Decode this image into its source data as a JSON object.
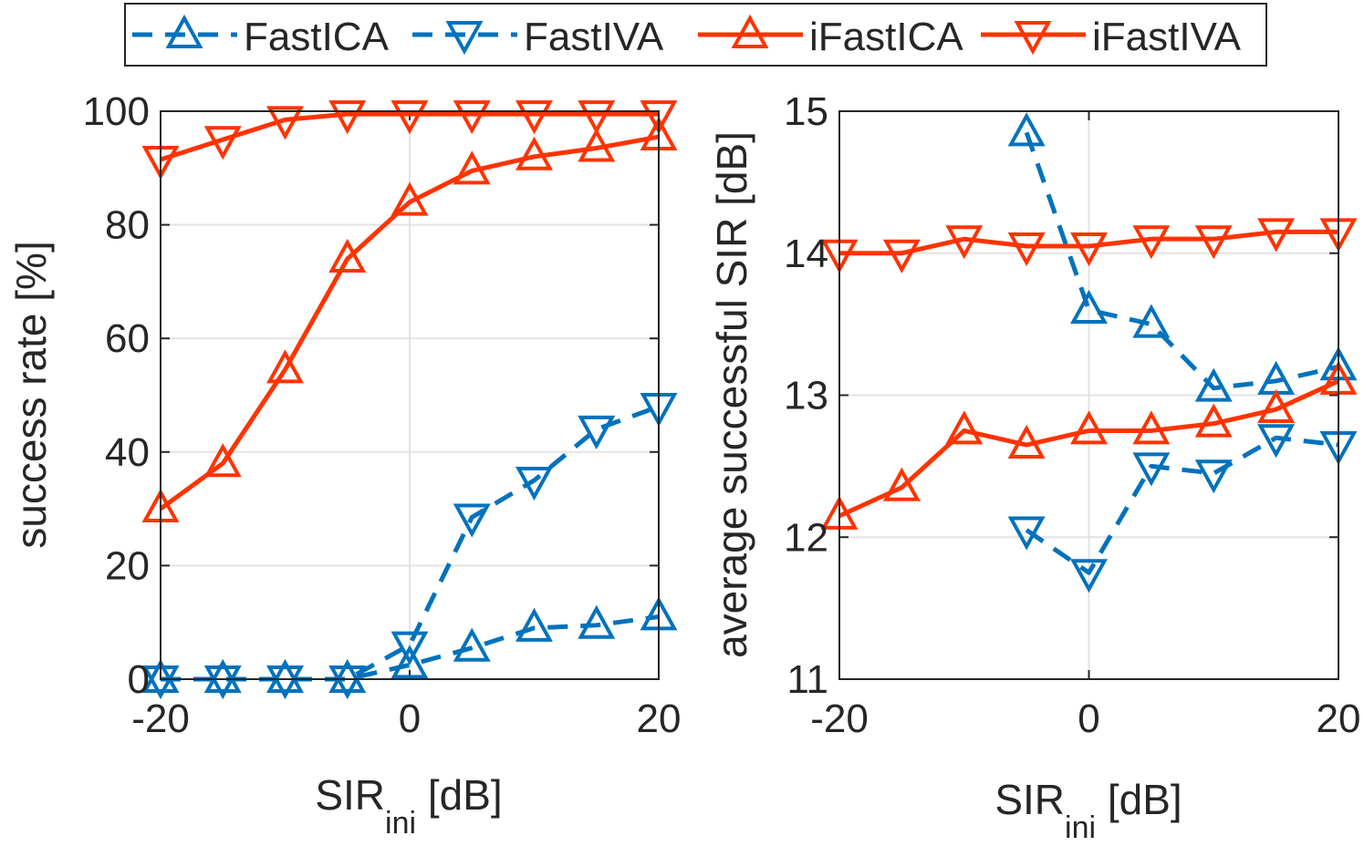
{
  "colors": {
    "fastica": "#0072BD",
    "fastiva": "#0072BD",
    "ifastica": "#FF3300",
    "ifastiva": "#FF3300",
    "grid": "#e3e3e3",
    "axis": "#262626"
  },
  "legend": {
    "items": [
      {
        "label": "FastICA",
        "series": "FastICA"
      },
      {
        "label": "FastIVA",
        "series": "FastIVA"
      },
      {
        "label": "iFastICA",
        "series": "iFastICA"
      },
      {
        "label": "iFastIVA",
        "series": "iFastIVA"
      }
    ]
  },
  "chart_data": [
    {
      "type": "line",
      "title": "",
      "xlabel": "SIR",
      "xlabel_sub": "ini",
      "xlabel_unit": " [dB]",
      "ylabel": "success rate [%]",
      "xlim": [
        -20,
        20
      ],
      "ylim": [
        0,
        100
      ],
      "xticks": [
        -20,
        0,
        20
      ],
      "yticks": [
        0,
        20,
        40,
        60,
        80,
        100
      ],
      "grid": true,
      "x": [
        -20,
        -15,
        -10,
        -5,
        0,
        5,
        10,
        15,
        20
      ],
      "series": [
        {
          "name": "FastICA",
          "marker": "triangle-up",
          "dash": true,
          "values": [
            0,
            0,
            0,
            0,
            2.5,
            5.5,
            9,
            9.5,
            11
          ]
        },
        {
          "name": "FastIVA",
          "marker": "triangle-down",
          "dash": true,
          "values": [
            0,
            0,
            0,
            0,
            6,
            28.5,
            35,
            44,
            48
          ]
        },
        {
          "name": "iFastICA",
          "marker": "triangle-up",
          "dash": false,
          "values": [
            30,
            38,
            54.5,
            74,
            84,
            89.5,
            92,
            93.5,
            95.5
          ]
        },
        {
          "name": "iFastIVA",
          "marker": "triangle-down",
          "dash": false,
          "values": [
            91.5,
            95,
            98.5,
            99.5,
            99.5,
            99.5,
            99.5,
            99.5,
            99.5
          ]
        }
      ]
    },
    {
      "type": "line",
      "title": "",
      "xlabel": "SIR",
      "xlabel_sub": "ini",
      "xlabel_unit": " [dB]",
      "ylabel": "average successful SIR [dB]",
      "xlim": [
        -20,
        20
      ],
      "ylim": [
        11,
        15
      ],
      "xticks": [
        -20,
        0,
        20
      ],
      "yticks": [
        11,
        12,
        13,
        14,
        15
      ],
      "grid": true,
      "x": [
        -20,
        -15,
        -10,
        -5,
        0,
        5,
        10,
        15,
        20
      ],
      "series": [
        {
          "name": "FastICA",
          "marker": "triangle-up",
          "dash": true,
          "values": [
            null,
            null,
            null,
            14.85,
            13.6,
            13.5,
            13.05,
            13.1,
            13.2
          ]
        },
        {
          "name": "FastIVA",
          "marker": "triangle-down",
          "dash": true,
          "values": [
            null,
            null,
            null,
            12.05,
            11.75,
            12.5,
            12.45,
            12.7,
            12.65
          ]
        },
        {
          "name": "iFastICA",
          "marker": "triangle-up",
          "dash": false,
          "values": [
            12.15,
            12.35,
            12.75,
            12.65,
            12.75,
            12.75,
            12.8,
            12.9,
            13.1
          ]
        },
        {
          "name": "iFastIVA",
          "marker": "triangle-down",
          "dash": false,
          "values": [
            14,
            14,
            14.1,
            14.05,
            14.05,
            14.1,
            14.1,
            14.15,
            14.15
          ]
        }
      ]
    }
  ]
}
